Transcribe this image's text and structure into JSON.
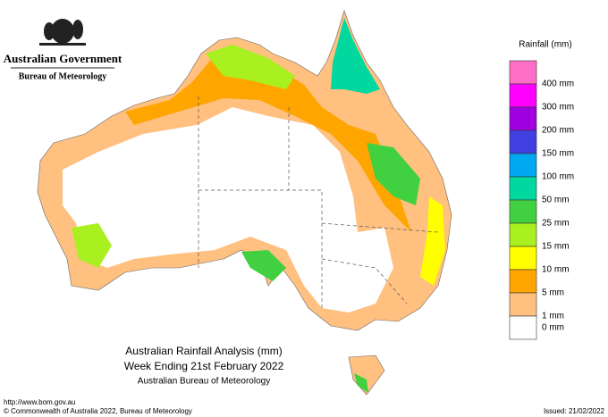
{
  "header": {
    "title": "Australian Government",
    "subtitle": "Bureau of Meteorology"
  },
  "legend": {
    "title": "Rainfall (mm)",
    "colors": [
      "#ff6ec7",
      "#ff00ff",
      "#a000e0",
      "#4040e0",
      "#00a8f0",
      "#00d8a0",
      "#40d040",
      "#a8f020",
      "#ffff00",
      "#ffa500",
      "#ffc080",
      "#ffffff"
    ],
    "labels": [
      "400 mm",
      "300 mm",
      "200 mm",
      "150 mm",
      "100 mm",
      "50 mm",
      "25 mm",
      "15 mm",
      "10 mm",
      "5 mm",
      "1 mm",
      "0 mm"
    ]
  },
  "caption": [
    "Australian Rainfall Analysis (mm)",
    "Week Ending 21st February 2022",
    "Australian Bureau of Meteorology"
  ],
  "footer": {
    "url": "http://www.bom.gov.au",
    "copyright": "© Commonwealth of Australia 2022, Bureau of Meteorology",
    "issued": "Issued: 21/02/2022"
  }
}
